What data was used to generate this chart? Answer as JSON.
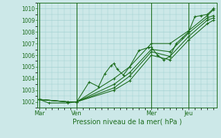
{
  "xlabel": "Pression niveau de la mer( hPa )",
  "ylim": [
    1001.5,
    1010.5
  ],
  "yticks": [
    1002,
    1003,
    1004,
    1005,
    1006,
    1007,
    1008,
    1009,
    1010
  ],
  "xtick_labels": [
    "Mar",
    "Ven",
    "Mer",
    "Jeu"
  ],
  "xtick_positions": [
    0,
    6,
    18,
    24
  ],
  "xlim": [
    -0.3,
    28.5
  ],
  "background_color": "#cce8e8",
  "grid_color": "#99cccc",
  "line_color": "#1a6b1a",
  "lines": [
    [
      0.0,
      1002.2,
      1.5,
      1001.9,
      4.5,
      1001.9,
      6.0,
      1002.0,
      8.0,
      1003.7,
      9.5,
      1003.3,
      10.5,
      1004.4,
      11.5,
      1005.1,
      12.0,
      1005.3,
      12.5,
      1004.8,
      13.5,
      1004.3,
      14.5,
      1005.0,
      16.0,
      1006.4,
      17.5,
      1006.65,
      18.0,
      1006.7,
      19.0,
      1006.0,
      20.0,
      1005.6,
      21.0,
      1005.9,
      22.0,
      1007.0,
      23.0,
      1007.5,
      24.0,
      1008.0,
      25.0,
      1009.3,
      26.0,
      1009.4,
      27.0,
      1009.5,
      28.0,
      1010.0
    ],
    [
      0.0,
      1002.2,
      4.5,
      1002.0,
      6.0,
      1002.0,
      12.0,
      1004.0,
      14.5,
      1005.0,
      18.0,
      1007.0,
      21.0,
      1007.0,
      24.0,
      1008.1,
      27.0,
      1009.4,
      28.0,
      1009.9
    ],
    [
      0.0,
      1002.2,
      4.5,
      1002.0,
      6.0,
      1002.0,
      12.0,
      1003.5,
      14.5,
      1004.5,
      18.0,
      1006.5,
      21.0,
      1006.3,
      24.0,
      1007.9,
      27.0,
      1009.2,
      28.0,
      1009.4
    ],
    [
      0.0,
      1002.2,
      4.5,
      1002.0,
      6.0,
      1002.0,
      12.0,
      1003.2,
      14.5,
      1004.2,
      18.0,
      1006.3,
      21.0,
      1005.9,
      24.0,
      1007.6,
      27.0,
      1009.0,
      28.0,
      1009.2
    ],
    [
      0.0,
      1002.2,
      4.5,
      1002.0,
      6.0,
      1002.0,
      12.0,
      1003.0,
      14.5,
      1003.8,
      18.0,
      1006.0,
      21.0,
      1005.6,
      24.0,
      1007.3,
      27.0,
      1008.7,
      28.0,
      1009.0
    ]
  ],
  "vline_positions": [
    0,
    6,
    18,
    24
  ],
  "vline_color": "#1a6b1a",
  "marker": "+"
}
